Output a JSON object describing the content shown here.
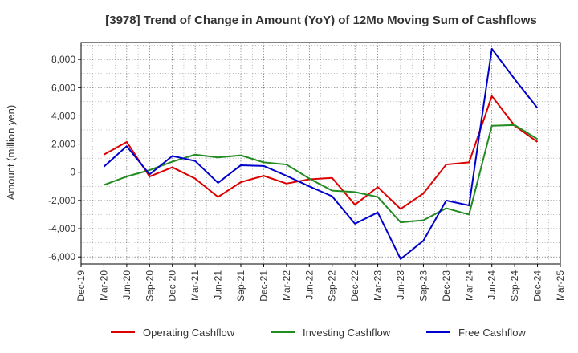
{
  "chart_data": {
    "type": "line",
    "title": "[3978]  Trend of Change in Amount (YoY) of 12Mo Moving Sum of Cashflows",
    "xlabel": "",
    "ylabel": "Amount (million yen)",
    "ylim": [
      -6500,
      9200
    ],
    "yticks": [
      -6000,
      -4000,
      -2000,
      0,
      2000,
      4000,
      6000,
      8000
    ],
    "ytick_labels": [
      "-6,000",
      "-4,000",
      "-2,000",
      "0",
      "2,000",
      "4,000",
      "6,000",
      "8,000"
    ],
    "categories": [
      "Dec-19",
      "Mar-20",
      "Jun-20",
      "Sep-20",
      "Dec-20",
      "Mar-21",
      "Jun-21",
      "Sep-21",
      "Dec-21",
      "Mar-22",
      "Jun-22",
      "Sep-22",
      "Dec-22",
      "Mar-23",
      "Jun-23",
      "Sep-23",
      "Dec-23",
      "Mar-24",
      "Jun-24",
      "Sep-24",
      "Dec-24",
      "Mar-25"
    ],
    "grid": true,
    "legend_position": "bottom",
    "series": [
      {
        "name": "Operating Cashflow",
        "color": "#dd0000",
        "values": [
          null,
          1250,
          2150,
          -300,
          350,
          -450,
          -1750,
          -700,
          -250,
          -800,
          -500,
          -400,
          -2300,
          -1050,
          -2600,
          -1500,
          550,
          700,
          5400,
          3300,
          2150,
          null
        ]
      },
      {
        "name": "Investing Cashflow",
        "color": "#228b22",
        "values": [
          null,
          -900,
          -300,
          150,
          750,
          1250,
          1050,
          1200,
          700,
          550,
          -450,
          -1300,
          -1400,
          -1750,
          -3550,
          -3400,
          -2550,
          -3000,
          3300,
          3350,
          2350,
          null
        ]
      },
      {
        "name": "Free Cashflow",
        "color": "#0000cc",
        "values": [
          null,
          400,
          1850,
          -150,
          1150,
          800,
          -750,
          500,
          450,
          -250,
          -1000,
          -1700,
          -3650,
          -2850,
          -6150,
          -4850,
          -2000,
          -2350,
          8750,
          6600,
          4550,
          null
        ]
      }
    ]
  }
}
